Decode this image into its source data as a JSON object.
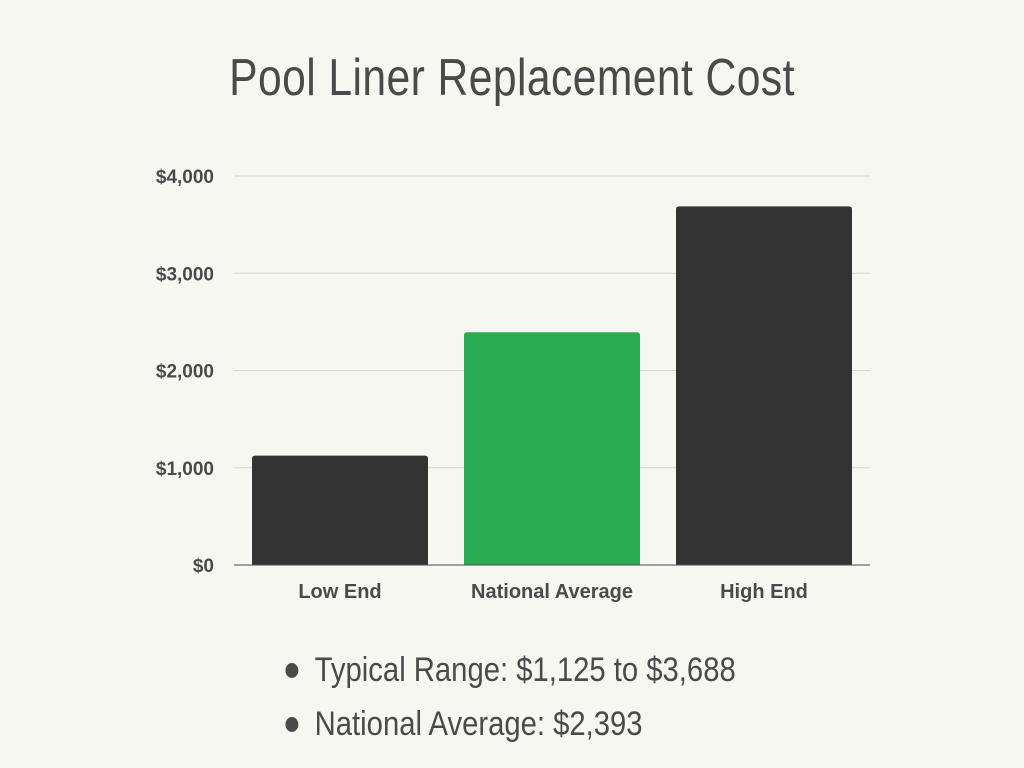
{
  "title": "Pool Liner Replacement Cost",
  "chart_data": {
    "type": "bar",
    "title": "Pool Liner Replacement Cost",
    "categories": [
      "Low End",
      "National Average",
      "High End"
    ],
    "values": [
      1125,
      2393,
      3688
    ],
    "bar_colors": [
      "#333333",
      "#2aad52",
      "#333333"
    ],
    "ylim": [
      0,
      4000
    ],
    "yticks": [
      0,
      1000,
      2000,
      3000,
      4000
    ],
    "ytick_labels": [
      "$0",
      "$1,000",
      "$2,000",
      "$3,000",
      "$4,000"
    ],
    "grid": true,
    "xlabel": "",
    "ylabel": ""
  },
  "notes": [
    "Typical Range: $1,125 to $3,688",
    "National Average: $2,393"
  ]
}
